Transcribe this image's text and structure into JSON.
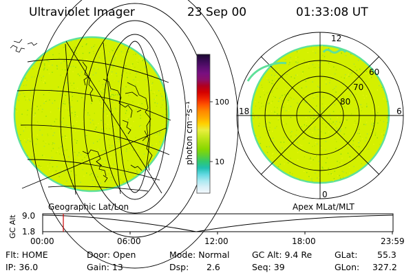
{
  "header": {
    "instrument": "Ultraviolet Imager",
    "date": "23 Sep 00",
    "time": "01:33:08 UT"
  },
  "colorbar": {
    "unit_label": "photon cm⁻²s⁻¹",
    "tick_high": "100",
    "tick_low": "10",
    "colors": [
      "#1a0a2e",
      "#3a0a55",
      "#5a0e70",
      "#780f80",
      "#8a0f6a",
      "#b00020",
      "#d40000",
      "#ee2200",
      "#ff5500",
      "#ff8800",
      "#ffa800",
      "#ffd000",
      "#e9ee40",
      "#c8e820",
      "#a8de10",
      "#88d800",
      "#60d030",
      "#30c870",
      "#20c0b0",
      "#60d8e0",
      "#a8e8f0",
      "#d8f0f8",
      "#f4f8fc"
    ]
  },
  "left_panel": {
    "caption": "Geographic Lat/Lon",
    "fill": "#d4f000",
    "edge": "#5ee09a"
  },
  "right_panel": {
    "caption": "Apex MLat/MLT",
    "mlt_top": "12",
    "mlt_left": "18",
    "mlt_right": "6",
    "mlt_bottom": "0",
    "lat_60": "60",
    "lat_70": "70",
    "lat_80": "80",
    "fill": "#d4f000",
    "edge": "#5ee09a"
  },
  "timeline": {
    "axis_label": "GC Alt",
    "y_max": "9.0",
    "y_min": "1.8",
    "ticks": [
      "00:00",
      "06:00",
      "12:00",
      "18:00",
      "23:59"
    ],
    "marker_color": "#cc0000"
  },
  "status": {
    "flt": "Flt: HOME",
    "ip": "IP: 36.0",
    "door": "Door: Open",
    "gain": "Gain: 13",
    "mode": "Mode: Normal",
    "dsp_label": "Dsp:",
    "dsp_value": "2.6",
    "gc_alt": "GC Alt: 9.4 Re",
    "seq": "Seq: 39",
    "glat_label": "GLat:",
    "glat_value": "55.3",
    "glon_label": "GLon:",
    "glon_value": "327.2"
  }
}
